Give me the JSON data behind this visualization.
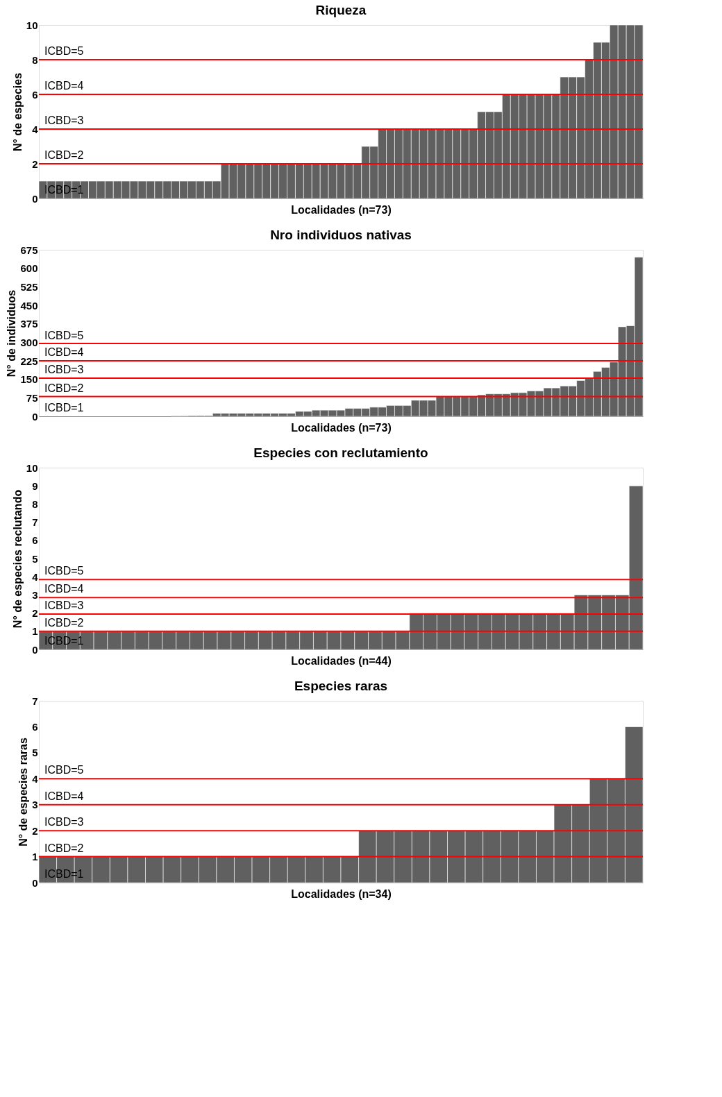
{
  "chart_data": [
    {
      "type": "bar",
      "title": "Riqueza",
      "xlabel": "Localidades (n=73)",
      "ylabel": "N° de especies",
      "tick_labels": "y",
      "categories": [
        null,
        null,
        null,
        null,
        null,
        null,
        null,
        null,
        null,
        null,
        null,
        null,
        null,
        null,
        null,
        null,
        null,
        null,
        null,
        null,
        null,
        null,
        null,
        null,
        null,
        null,
        null,
        null,
        null,
        null,
        null,
        null,
        null,
        null,
        null,
        null,
        null,
        null,
        null,
        null,
        null,
        null,
        null,
        null,
        null,
        null,
        null,
        null,
        null,
        null,
        null,
        null,
        null,
        null,
        null,
        null,
        null,
        null,
        null,
        null,
        null,
        null,
        null,
        null,
        null,
        null,
        null,
        null,
        null,
        null,
        null,
        null,
        null
      ],
      "series": [
        {
          "color": "#606060",
          "values": [
            1,
            1,
            1,
            1,
            1,
            1,
            1,
            1,
            1,
            1,
            1,
            1,
            1,
            1,
            1,
            1,
            1,
            1,
            1,
            1,
            1,
            1,
            2,
            2,
            2,
            2,
            2,
            2,
            2,
            2,
            2,
            2,
            2,
            2,
            2,
            2,
            2,
            2,
            2,
            3,
            3,
            4,
            4,
            4,
            4,
            4,
            4,
            4,
            4,
            4,
            4,
            4,
            4,
            5,
            5,
            5,
            6,
            6,
            6,
            6,
            6,
            6,
            6,
            7,
            7,
            7,
            8,
            9,
            9,
            10,
            10,
            10,
            10
          ]
        }
      ],
      "ylim": [
        0,
        10
      ],
      "yticks": [
        0,
        2,
        4,
        6,
        8,
        10
      ],
      "ref_lines": [
        {
          "axis": "y",
          "value": 2,
          "color": "#ff0000"
        },
        {
          "axis": "y",
          "value": 4,
          "color": "#ff0000"
        },
        {
          "axis": "y",
          "value": 6,
          "color": "#ff0000"
        },
        {
          "axis": "y",
          "value": 8,
          "color": "#ff0000"
        }
      ],
      "annotations": [
        "ICBD=5",
        "ICBD=4",
        "ICBD=3",
        "ICBD=2",
        "ICBD=1"
      ]
    },
    {
      "type": "bar",
      "title": "Nro individuos nativas",
      "xlabel": "Localidades (n=73)",
      "ylabel": "N° de individuos",
      "tick_labels": "y",
      "categories": [
        null,
        null,
        null,
        null,
        null,
        null,
        null,
        null,
        null,
        null,
        null,
        null,
        null,
        null,
        null,
        null,
        null,
        null,
        null,
        null,
        null,
        null,
        null,
        null,
        null,
        null,
        null,
        null,
        null,
        null,
        null,
        null,
        null,
        null,
        null,
        null,
        null,
        null,
        null,
        null,
        null,
        null,
        null,
        null,
        null,
        null,
        null,
        null,
        null,
        null,
        null,
        null,
        null,
        null,
        null,
        null,
        null,
        null,
        null,
        null,
        null,
        null,
        null,
        null,
        null,
        null,
        null,
        null,
        null,
        null,
        null,
        null,
        null
      ],
      "series": [
        {
          "color": "#606060",
          "values": [
            0,
            0,
            0,
            0,
            0,
            0,
            0,
            0,
            0,
            0,
            0,
            0,
            0,
            0,
            0,
            0,
            2,
            2,
            3,
            3,
            3,
            12,
            12,
            12,
            12,
            12,
            12,
            12,
            12,
            12,
            12,
            20,
            20,
            25,
            25,
            25,
            25,
            32,
            32,
            32,
            37,
            37,
            44,
            44,
            44,
            65,
            65,
            65,
            80,
            80,
            80,
            80,
            80,
            87,
            91,
            91,
            91,
            96,
            96,
            103,
            103,
            115,
            115,
            123,
            123,
            145,
            153,
            182,
            198,
            220,
            363,
            367,
            645
          ]
        }
      ],
      "ylim": [
        0,
        675
      ],
      "yticks": [
        0,
        75,
        150,
        225,
        300,
        375,
        450,
        525,
        600,
        675
      ],
      "ref_lines": [
        {
          "axis": "y",
          "value": 80,
          "color": "#ff0000"
        },
        {
          "axis": "y",
          "value": 155,
          "color": "#ff0000"
        },
        {
          "axis": "y",
          "value": 225,
          "color": "#ff0000"
        },
        {
          "axis": "y",
          "value": 295,
          "color": "#ff0000"
        }
      ],
      "annotations": [
        "ICBD=5",
        "ICBD=4",
        "ICBD=3",
        "ICBD=2",
        "ICBD=1"
      ]
    },
    {
      "type": "bar",
      "title": "Especies con reclutamiento",
      "xlabel": "Localidades (n=44)",
      "ylabel": "N° de especies reclutando",
      "tick_labels": "y",
      "categories": [
        null,
        null,
        null,
        null,
        null,
        null,
        null,
        null,
        null,
        null,
        null,
        null,
        null,
        null,
        null,
        null,
        null,
        null,
        null,
        null,
        null,
        null,
        null,
        null,
        null,
        null,
        null,
        null,
        null,
        null,
        null,
        null,
        null,
        null,
        null,
        null,
        null,
        null,
        null,
        null,
        null,
        null,
        null,
        null
      ],
      "series": [
        {
          "color": "#606060",
          "values": [
            1,
            1,
            1,
            1,
            1,
            1,
            1,
            1,
            1,
            1,
            1,
            1,
            1,
            1,
            1,
            1,
            1,
            1,
            1,
            1,
            1,
            1,
            1,
            1,
            1,
            1,
            1,
            2,
            2,
            2,
            2,
            2,
            2,
            2,
            2,
            2,
            2,
            2,
            2,
            3,
            3,
            3,
            3,
            9
          ]
        }
      ],
      "ylim": [
        0,
        10
      ],
      "yticks": [
        0,
        1,
        2,
        3,
        4,
        5,
        6,
        7,
        8,
        9,
        10
      ],
      "ref_lines": [
        {
          "axis": "y",
          "value": 1,
          "color": "#ff0000"
        },
        {
          "axis": "y",
          "value": 1.95,
          "color": "#ff0000"
        },
        {
          "axis": "y",
          "value": 2.85,
          "color": "#ff0000"
        },
        {
          "axis": "y",
          "value": 3.85,
          "color": "#ff0000"
        }
      ],
      "annotations": [
        "ICBD=5",
        "ICBD=4",
        "ICBD=3",
        "ICBD=2",
        "ICBD=1"
      ]
    },
    {
      "type": "bar",
      "title": "Especies raras",
      "xlabel": "Localidades (n=34)",
      "ylabel": "N° de especies raras",
      "tick_labels": "y",
      "categories": [
        null,
        null,
        null,
        null,
        null,
        null,
        null,
        null,
        null,
        null,
        null,
        null,
        null,
        null,
        null,
        null,
        null,
        null,
        null,
        null,
        null,
        null,
        null,
        null,
        null,
        null,
        null,
        null,
        null,
        null,
        null,
        null,
        null,
        null
      ],
      "series": [
        {
          "color": "#606060",
          "values": [
            1,
            1,
            1,
            1,
            1,
            1,
            1,
            1,
            1,
            1,
            1,
            1,
            1,
            1,
            1,
            1,
            1,
            1,
            2,
            2,
            2,
            2,
            2,
            2,
            2,
            2,
            2,
            2,
            2,
            3,
            3,
            4,
            4,
            6
          ]
        }
      ],
      "ylim": [
        0,
        7
      ],
      "yticks": [
        0,
        1,
        2,
        3,
        4,
        5,
        6,
        7
      ],
      "ref_lines": [
        {
          "axis": "y",
          "value": 1,
          "color": "#ff0000"
        },
        {
          "axis": "y",
          "value": 2,
          "color": "#ff0000"
        },
        {
          "axis": "y",
          "value": 3,
          "color": "#ff0000"
        },
        {
          "axis": "y",
          "value": 4,
          "color": "#ff0000"
        }
      ],
      "annotations": [
        "ICBD=5",
        "ICBD=4",
        "ICBD=3",
        "ICBD=2",
        "ICBD=1"
      ]
    }
  ]
}
